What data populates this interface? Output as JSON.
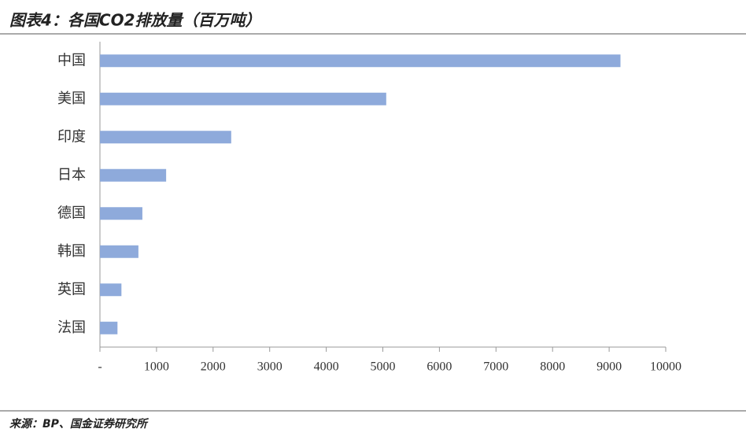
{
  "chart_data": {
    "type": "barh",
    "title": "图表4：各国CO2排放量（百万吨）",
    "source": "来源：BP、国金证券研究所",
    "categories": [
      "中国",
      "美国",
      "印度",
      "日本",
      "德国",
      "韩国",
      "英国",
      "法国"
    ],
    "values": [
      9200,
      5060,
      2320,
      1170,
      750,
      680,
      380,
      310
    ],
    "color": "#8eaadb",
    "xlim": [
      0,
      10000
    ],
    "xticks": [
      {
        "value": 0,
        "label": "-"
      },
      1000,
      2000,
      3000,
      4000,
      5000,
      6000,
      7000,
      8000,
      9000,
      10000
    ]
  }
}
